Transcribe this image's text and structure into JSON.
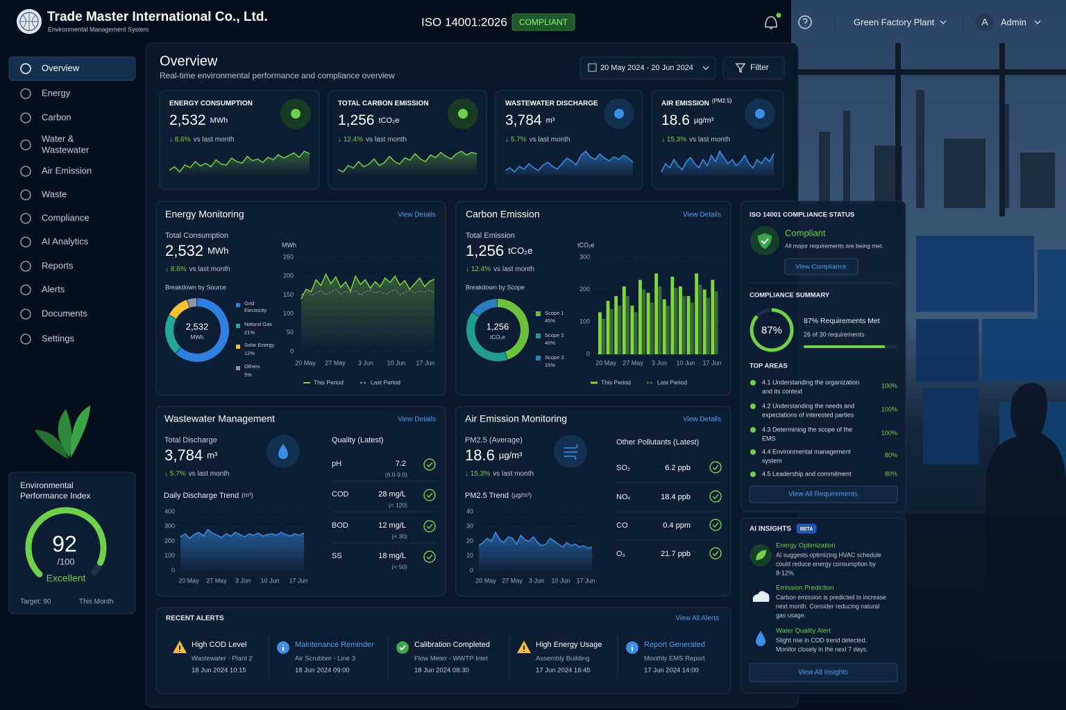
{
  "header": {
    "company": "Trade Master International Co., Ltd.",
    "subtitle": "Environmental Management System",
    "iso": "ISO 14001:2026",
    "iso_status": "COMPLIANT",
    "plant": "Green Factory Plant",
    "avatar": "A",
    "user": "Admin"
  },
  "nav": [
    [
      "Overview"
    ],
    [
      "Energy"
    ],
    [
      "Carbon"
    ],
    [
      "Water &",
      "Wastewater"
    ],
    [
      "Air Emission"
    ],
    [
      "Waste"
    ],
    [
      "Compliance"
    ],
    [
      "AI Analytics"
    ],
    [
      "Reports"
    ],
    [
      "Alerts"
    ],
    [
      "Documents"
    ],
    [
      "Settings"
    ]
  ],
  "epi": {
    "title": [
      "Environmental",
      "Performance Index"
    ],
    "score": 92,
    "range": [
      0,
      100
    ],
    "max_label": "/100",
    "rating": "Excellent",
    "target": "Target: 90",
    "period": "This Month"
  },
  "overview": {
    "title": "Overview",
    "subtitle": "Real-time environmental performance and compliance overview",
    "date_range": "20 May 2024 - 20 Jun 2024",
    "filter": "Filter"
  },
  "kpis": [
    {
      "label": "ENERGY CONSUMPTION",
      "value": "2,532",
      "unit": "MWh",
      "change": "↓ 8.6%",
      "note": "vs last month",
      "color": "#6fd14a",
      "spark": [
        30,
        34,
        28,
        36,
        33,
        40,
        35,
        38,
        34,
        42,
        37,
        36,
        44,
        40,
        38,
        46,
        41,
        43,
        39,
        45,
        42,
        48,
        44,
        47,
        50,
        45,
        52,
        49
      ]
    },
    {
      "label": "TOTAL CARBON EMISSION",
      "value": "1,256",
      "unit": "tCO₂e",
      "change": "↓ 12.4%",
      "note": "vs last month",
      "color": "#6fd14a",
      "spark": [
        32,
        30,
        35,
        33,
        38,
        34,
        36,
        40,
        35,
        37,
        42,
        38,
        36,
        41,
        39,
        44,
        40,
        38,
        43,
        41,
        45,
        42,
        40,
        44,
        46,
        43,
        45,
        44
      ]
    },
    {
      "label": "WASTEWATER DISCHARGE",
      "value": "3,784",
      "unit": "m³",
      "change": "↓ 5.7%",
      "note": "vs last month",
      "color": "#3a8fe8",
      "spark": [
        36,
        38,
        35,
        39,
        37,
        41,
        38,
        36,
        40,
        42,
        39,
        37,
        41,
        45,
        43,
        40,
        47,
        50,
        46,
        44,
        48,
        45,
        43,
        46,
        44,
        47,
        45,
        42
      ]
    },
    {
      "label": "AIR EMISSION",
      "label2": "(PM2.5)",
      "value": "18.6",
      "unit": "µg/m³",
      "change": "↓ 15.3%",
      "note": "vs last month",
      "color": "#3a8fe8",
      "spark": [
        38,
        42,
        40,
        44,
        41,
        39,
        43,
        45,
        42,
        40,
        44,
        41,
        46,
        43,
        48,
        45,
        42,
        44,
        41,
        43,
        46,
        42,
        40,
        44,
        42,
        45,
        43,
        47
      ]
    }
  ],
  "energy": {
    "title": "Energy Monitoring",
    "link": "View Details",
    "total_label": "Total Consumption",
    "value": "2,532",
    "unit": "MWh",
    "change": "↓ 8.6%",
    "note": "vs last month",
    "breakdown": "Breakdown by Source",
    "center_value": "2,532",
    "center_unit": "MWh",
    "sources": [
      {
        "name": [
          "Grid",
          "Electricity"
        ],
        "value": 62,
        "color": "#2f7fe0"
      },
      {
        "name": [
          "Natural Gas"
        ],
        "label": "21%",
        "value": 21,
        "color": "#23a89a"
      },
      {
        "name": [
          "Solar Energy"
        ],
        "label": "12%",
        "value": 12,
        "color": "#f2c230"
      },
      {
        "name": [
          "Others"
        ],
        "label": "5%",
        "value": 5,
        "color": "#8a96a8"
      }
    ],
    "chart": {
      "type": "line",
      "y_label": "MWh",
      "ylim": [
        0,
        250
      ],
      "yticks": [
        0,
        50,
        100,
        150,
        200,
        250
      ],
      "x_labels": [
        "20 May",
        "27 May",
        "3 Jun",
        "10 Jun",
        "17 Jun"
      ],
      "series": [
        {
          "name": "This Period",
          "color": "#7fd63f",
          "values": [
            140,
            165,
            158,
            190,
            175,
            205,
            180,
            198,
            170,
            185,
            160,
            200,
            178,
            190,
            168,
            185,
            172,
            195,
            183,
            200,
            176,
            188,
            165,
            180,
            195,
            172,
            186,
            192
          ]
        },
        {
          "name": "Last Period",
          "color": "#7f8c9c",
          "values": [
            150,
            160,
            148,
            155,
            162,
            150,
            158,
            165,
            152,
            160,
            155,
            162,
            150,
            158,
            163,
            155,
            160,
            152,
            158,
            165,
            150,
            157,
            162,
            155,
            160,
            158,
            163,
            155
          ]
        }
      ]
    }
  },
  "carbon": {
    "title": "Carbon Emission",
    "link": "View Details",
    "total_label": "Total Emission",
    "value": "1,256",
    "unit": "tCO₂e",
    "change": "↓ 12.4%",
    "note": "vs last month",
    "breakdown": "Breakdown by Scope",
    "center_value": "1,256",
    "center_unit": "tCO₂e",
    "scopes": [
      {
        "name": "Scope 1",
        "label": "45%",
        "value": 45,
        "color": "#6cc13a"
      },
      {
        "name": "Scope 2",
        "label": "40%",
        "value": 40,
        "color": "#1f9d8f"
      },
      {
        "name": "Scope 3",
        "label": "15%",
        "value": 15,
        "color": "#2b7fc0"
      }
    ],
    "chart": {
      "type": "bar",
      "y_label": "tCO₂e",
      "ylim": [
        0,
        300
      ],
      "yticks": [
        0,
        100,
        200,
        300
      ],
      "x_labels": [
        "20 May",
        "27 May",
        "3 Jun",
        "10 Jun",
        "17 Jun"
      ],
      "series": [
        {
          "name": "This Period",
          "color": "#7fd63f",
          "values": [
            130,
            165,
            180,
            210,
            150,
            230,
            190,
            250,
            170,
            240,
            210,
            180,
            250,
            200,
            230
          ]
        },
        {
          "name": "Last Period",
          "color": "#3b6a3a",
          "values": [
            110,
            140,
            150,
            180,
            130,
            200,
            160,
            210,
            150,
            205,
            180,
            160,
            215,
            175,
            195
          ]
        }
      ]
    }
  },
  "wastewater": {
    "title": "Wastewater Management",
    "link": "View Details",
    "total_label": "Total Discharge",
    "value": "3,784",
    "unit": "m³",
    "change": "↓ 5.7%",
    "note": "vs last month",
    "trend_title": "Daily Discharge Trend",
    "trend_unit": "(m³)",
    "chart": {
      "type": "area",
      "ylim": [
        0,
        400
      ],
      "yticks": [
        0,
        100,
        200,
        300,
        400
      ],
      "x_labels": [
        "20 May",
        "27 May",
        "3 Jun",
        "10 Jun",
        "17 Jun"
      ],
      "color": "#3a8fe8",
      "values": [
        230,
        250,
        220,
        245,
        260,
        235,
        280,
        255,
        240,
        225,
        250,
        235,
        260,
        245,
        230,
        250,
        240,
        255,
        235,
        245,
        250,
        240,
        260,
        245,
        235,
        250,
        240,
        255
      ]
    },
    "quality_title": "Quality (Latest)",
    "quality": [
      {
        "name": "pH",
        "value": "7.2",
        "limit": "(6.0-9.0)"
      },
      {
        "name": "COD",
        "value": "28 mg/L",
        "limit": "(< 120)"
      },
      {
        "name": "BOD",
        "value": "12 mg/L",
        "limit": "(< 30)"
      },
      {
        "name": "SS",
        "value": "18 mg/L",
        "limit": "(< 50)"
      }
    ]
  },
  "air": {
    "title": "Air Emission Monitoring",
    "link": "View Details",
    "total_label": "PM2.5 (Average)",
    "value": "18.6",
    "unit": "µg/m³",
    "change": "↓ 15.3%",
    "note": "vs last month",
    "trend_title": "PM2.5 Trend",
    "trend_unit": "(µg/m³)",
    "chart": {
      "type": "area",
      "ylim": [
        0,
        40
      ],
      "yticks": [
        0,
        10,
        20,
        30,
        40
      ],
      "x_labels": [
        "20 May",
        "27 May",
        "3 Jun",
        "10 Jun",
        "17 Jun"
      ],
      "color": "#3a8fe8",
      "values": [
        17,
        19,
        22,
        20,
        26,
        21,
        19,
        23,
        22,
        18,
        24,
        21,
        20,
        23,
        19,
        17,
        18,
        22,
        20,
        18,
        16,
        19,
        17,
        18,
        16,
        17,
        15,
        16
      ]
    },
    "pollutants_title": "Other Pollutants (Latest)",
    "pollutants": [
      {
        "name": "SO₂",
        "value": "6.2 ppb"
      },
      {
        "name": "NOₓ",
        "value": "18.4 ppb"
      },
      {
        "name": "CO",
        "value": "0.4 ppm"
      },
      {
        "name": "O₃",
        "value": "21.7 ppb"
      }
    ]
  },
  "alerts": {
    "title": "RECENT ALERTS",
    "link": "View All Alerts",
    "items": [
      {
        "kind": "warning",
        "title": "High COD Level",
        "source": "Wastewater - Plant 2",
        "time": "18 Jun 2024 10:15"
      },
      {
        "kind": "info",
        "title": "Maintenance Reminder",
        "source": "Air Scrubber - Line 3",
        "time": "18 Jun 2024 09:00"
      },
      {
        "kind": "success",
        "title": "Calibration Completed",
        "source": "Flow Meter - WWTP Inlet",
        "time": "18 Jun 2024 08:30"
      },
      {
        "kind": "warning",
        "title": "High Energy Usage",
        "source": "Assembly Building",
        "time": "17 Jun 2024 16:45"
      },
      {
        "kind": "info",
        "title": "Report Generated",
        "source": "Monthly EMS Report",
        "time": "17 Jun 2024 14:00"
      }
    ]
  },
  "compliance": {
    "title": "ISO 14001 COMPLIANCE STATUS",
    "status": "Compliant",
    "status_note": "All major requirements are being met.",
    "button": "View Compliance",
    "summary_title": "COMPLIANCE SUMMARY",
    "ring_value": 87,
    "range": [
      0,
      100
    ],
    "ring_label": "87%",
    "met": "87% Requirements Met",
    "count": "26 of 30 requirements",
    "areas_title": "TOP AREAS",
    "areas": [
      {
        "lines": [
          "4.1 Understanding the organization",
          "and its context"
        ],
        "pct": "100%"
      },
      {
        "lines": [
          "4.2 Understanding the needs and",
          "expectations of interested parties"
        ],
        "pct": "100%"
      },
      {
        "lines": [
          "4.3 Determining the scope of the",
          "EMS"
        ],
        "pct": "100%"
      },
      {
        "lines": [
          "4.4 Environmental management",
          "system"
        ],
        "pct": "80%"
      },
      {
        "lines": [
          "4.5 Leadership and commitment"
        ],
        "pct": "80%"
      }
    ],
    "areas_button": "View All Requirements"
  },
  "insights": {
    "title": "AI INSIGHTS",
    "badge": "BETA",
    "items": [
      {
        "title": "Energy Optimization",
        "lines": [
          "AI suggests optimizing HVAC schedule",
          "could reduce energy consumption by",
          "8-12%."
        ]
      },
      {
        "title": "Emission Prediction",
        "lines": [
          "Carbon emission is predicted to increase",
          "next month. Consider reducing natural",
          "gas usage."
        ]
      },
      {
        "title": "Water Quality Alert",
        "lines": [
          "Slight rise in COD trend detected.",
          "Monitor closely in the next 7 days."
        ]
      }
    ],
    "button": "View All Insights"
  }
}
